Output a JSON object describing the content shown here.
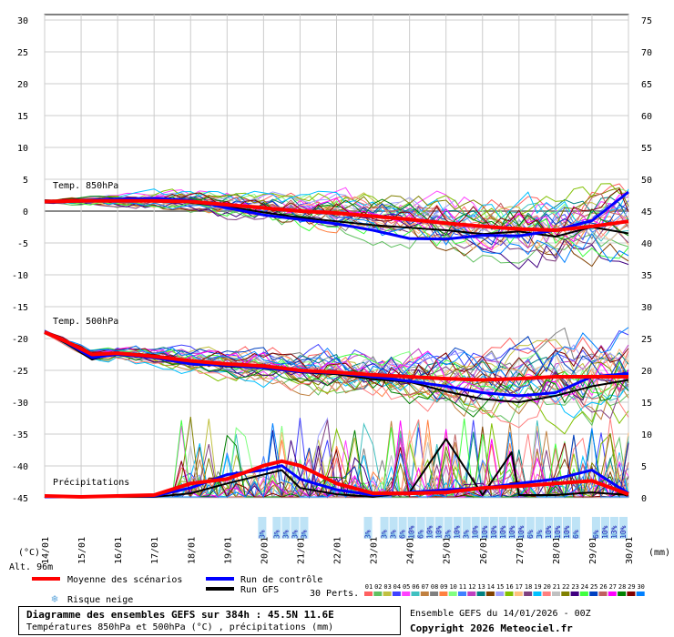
{
  "chart_data": {
    "type": "line",
    "title": "Diagramme des ensembles GEFS sur 384h : 45.5N 11.6E",
    "subtitle": "Températures 850hPa et 500hPa (°C) , précipitations (mm)",
    "left_axis_label": "(°C)",
    "right_axis_label": "(mm)",
    "altitude_label": "Alt. 96m",
    "left_axis_ticks": [
      30,
      25,
      20,
      15,
      10,
      5,
      0,
      -5,
      -10,
      -15,
      -20,
      -25,
      -30,
      -35,
      -40,
      -45
    ],
    "right_axis_ticks": [
      75,
      70,
      65,
      60,
      55,
      50,
      45,
      40,
      35,
      30,
      25,
      20,
      15,
      10,
      5,
      0
    ],
    "x_ticks": [
      "14/01",
      "15/01",
      "16/01",
      "17/01",
      "18/01",
      "19/01",
      "20/01",
      "21/01",
      "22/01",
      "23/01",
      "24/01",
      "25/01",
      "26/01",
      "27/01",
      "28/01",
      "29/01",
      "30/01"
    ],
    "section_labels": [
      "Temp. 850hPa",
      "Temp. 500hPa",
      "Précipitations"
    ],
    "legend": {
      "mean": "Moyenne des scénarios",
      "control": "Run de contrôle",
      "gfs": "Run GFS",
      "snow": "Risque neige",
      "perts_label": "30 Perts.",
      "pert_numbers": [
        "01",
        "02",
        "03",
        "04",
        "05",
        "06",
        "07",
        "08",
        "09",
        "10",
        "11",
        "12",
        "13",
        "14",
        "15",
        "16",
        "17",
        "18",
        "19",
        "20",
        "21",
        "22",
        "23",
        "24",
        "25",
        "26",
        "27",
        "28",
        "29",
        "30"
      ]
    },
    "colors": {
      "mean": "#ff0000",
      "control": "#0000ff",
      "gfs": "#000000",
      "snow": "#88ccee",
      "perts": [
        "#ff6060",
        "#60c060",
        "#c0c040",
        "#4040ff",
        "#ff40ff",
        "#40c0c0",
        "#c08040",
        "#808080",
        "#ff8040",
        "#80ff80",
        "#4080ff",
        "#c040c0",
        "#008080",
        "#804000",
        "#a0a0ff",
        "#80c000",
        "#ffc080",
        "#804080",
        "#00c0ff",
        "#ff8080",
        "#c0c0c0",
        "#808000",
        "#400080",
        "#40ff40",
        "#0040c0",
        "#c06060",
        "#ff00ff",
        "#008000",
        "#800000",
        "#0080ff"
      ]
    },
    "t850": {
      "mean": [
        [
          0,
          1.5
        ],
        [
          1,
          1.6
        ],
        [
          2,
          1.6
        ],
        [
          3,
          1.6
        ],
        [
          4,
          1.5
        ],
        [
          5,
          1.0
        ],
        [
          6,
          0.5
        ],
        [
          7,
          0.0
        ],
        [
          8,
          -0.3
        ],
        [
          9,
          -0.8
        ],
        [
          10,
          -1.3
        ],
        [
          11,
          -1.9
        ],
        [
          12,
          -2.4
        ],
        [
          13,
          -2.8
        ],
        [
          14,
          -3.0
        ],
        [
          15,
          -2.4
        ],
        [
          16,
          -1.6
        ]
      ],
      "control": [
        [
          0,
          1.5
        ],
        [
          1,
          1.7
        ],
        [
          2,
          1.9
        ],
        [
          3,
          2.0
        ],
        [
          4,
          1.7
        ],
        [
          5,
          0.5
        ],
        [
          6,
          -0.6
        ],
        [
          7,
          -1.3
        ],
        [
          8,
          -2.0
        ],
        [
          9,
          -3.0
        ],
        [
          10,
          -4.3
        ],
        [
          11,
          -4.4
        ],
        [
          12,
          -3.8
        ],
        [
          13,
          -3.9
        ],
        [
          14,
          -3.0
        ],
        [
          15,
          -1.5
        ],
        [
          16,
          3.0
        ]
      ],
      "gfs": [
        [
          0,
          1.7
        ],
        [
          1,
          1.5
        ],
        [
          2,
          1.7
        ],
        [
          3,
          2.0
        ],
        [
          4,
          1.3
        ],
        [
          5,
          0.7
        ],
        [
          6,
          -0.2
        ],
        [
          7,
          -1.0
        ],
        [
          8,
          -1.6
        ],
        [
          9,
          -2.2
        ],
        [
          10,
          -2.6
        ],
        [
          11,
          -3.0
        ],
        [
          12,
          -3.6
        ],
        [
          13,
          -3.2
        ],
        [
          14,
          -4.0
        ],
        [
          15,
          -2.5
        ],
        [
          16,
          -3.5
        ]
      ]
    },
    "t500": {
      "mean": [
        [
          0,
          -19
        ],
        [
          0.6,
          -20.5
        ],
        [
          1.3,
          -22.5
        ],
        [
          2,
          -22.3
        ],
        [
          3,
          -22.8
        ],
        [
          4,
          -23.5
        ],
        [
          5,
          -24.0
        ],
        [
          6,
          -24.3
        ],
        [
          7,
          -25.0
        ],
        [
          8,
          -25.3
        ],
        [
          9,
          -25.7
        ],
        [
          10,
          -26.0
        ],
        [
          11,
          -26.3
        ],
        [
          12,
          -26.5
        ],
        [
          13,
          -26.3
        ],
        [
          14,
          -26.0
        ],
        [
          15,
          -26.0
        ],
        [
          16,
          -26.0
        ]
      ],
      "control": [
        [
          0,
          -19
        ],
        [
          0.6,
          -20.6
        ],
        [
          1.3,
          -23.0
        ],
        [
          2,
          -22.5
        ],
        [
          3,
          -23.0
        ],
        [
          4,
          -24.0
        ],
        [
          5,
          -24.2
        ],
        [
          6,
          -24.6
        ],
        [
          7,
          -25.2
        ],
        [
          8,
          -25.4
        ],
        [
          9,
          -26.0
        ],
        [
          10,
          -26.7
        ],
        [
          11,
          -27.5
        ],
        [
          12,
          -28.5
        ],
        [
          13,
          -29.0
        ],
        [
          14,
          -28.5
        ],
        [
          15,
          -26.0
        ],
        [
          16,
          -25.5
        ]
      ],
      "gfs": [
        [
          0,
          -19
        ],
        [
          0.6,
          -20.8
        ],
        [
          1.3,
          -23.3
        ],
        [
          2,
          -22.2
        ],
        [
          3,
          -22.6
        ],
        [
          4,
          -23.8
        ],
        [
          5,
          -24.4
        ],
        [
          6,
          -24.6
        ],
        [
          7,
          -25.3
        ],
        [
          8,
          -25.6
        ],
        [
          9,
          -26.4
        ],
        [
          10,
          -26.8
        ],
        [
          11,
          -28.3
        ],
        [
          12,
          -29.5
        ],
        [
          13,
          -30.0
        ],
        [
          14,
          -29.0
        ],
        [
          15,
          -27.5
        ],
        [
          16,
          -26.5
        ]
      ]
    },
    "precip": {
      "mean": [
        [
          0,
          0.1
        ],
        [
          1,
          0.0
        ],
        [
          2,
          0.1
        ],
        [
          3,
          0.2
        ],
        [
          4,
          1.5
        ],
        [
          5,
          2.0
        ],
        [
          6,
          3.5
        ],
        [
          6.5,
          4.0
        ],
        [
          7,
          3.5
        ],
        [
          8,
          1.5
        ],
        [
          9,
          0.4
        ],
        [
          10,
          0.4
        ],
        [
          11,
          0.5
        ],
        [
          12,
          1.0
        ],
        [
          13,
          1.2
        ],
        [
          14,
          1.5
        ],
        [
          15,
          1.8
        ],
        [
          16,
          0.3
        ]
      ],
      "control": [
        [
          0,
          0.0
        ],
        [
          1,
          0.0
        ],
        [
          2,
          0.1
        ],
        [
          3,
          0.1
        ],
        [
          4,
          1.0
        ],
        [
          5,
          2.5
        ],
        [
          6,
          3.0
        ],
        [
          6.5,
          3.5
        ],
        [
          7,
          2.0
        ],
        [
          8,
          0.8
        ],
        [
          9,
          0.2
        ],
        [
          10,
          0.5
        ],
        [
          11,
          0.8
        ],
        [
          12,
          1.0
        ],
        [
          13,
          1.5
        ],
        [
          14,
          2.0
        ],
        [
          15,
          3.0
        ],
        [
          16,
          0.4
        ]
      ],
      "gfs": [
        [
          0,
          0.0
        ],
        [
          1,
          0.0
        ],
        [
          2,
          0.0
        ],
        [
          3,
          0.0
        ],
        [
          4,
          0.4
        ],
        [
          5,
          1.5
        ],
        [
          6,
          2.5
        ],
        [
          6.5,
          3.0
        ],
        [
          7,
          1.0
        ],
        [
          8,
          0.3
        ],
        [
          9,
          0.0
        ],
        [
          10,
          0.5
        ],
        [
          11,
          6.5
        ],
        [
          12,
          0.2
        ],
        [
          12.8,
          5.0
        ],
        [
          13,
          0.2
        ],
        [
          14,
          0.2
        ],
        [
          15,
          0.5
        ],
        [
          16,
          0.2
        ]
      ]
    },
    "snow_markers": [
      {
        "x": 5.95,
        "label": "3%"
      },
      {
        "x": 6.35,
        "label": "3%"
      },
      {
        "x": 6.6,
        "label": "3%"
      },
      {
        "x": 6.85,
        "label": "3%"
      },
      {
        "x": 7.1,
        "label": "3%"
      },
      {
        "x": 8.85,
        "label": "3%"
      },
      {
        "x": 9.3,
        "label": "3%"
      },
      {
        "x": 9.55,
        "label": "3%"
      },
      {
        "x": 9.8,
        "label": "6%"
      },
      {
        "x": 10.05,
        "label": "10%"
      },
      {
        "x": 10.3,
        "label": "6%"
      },
      {
        "x": 10.55,
        "label": "10%"
      },
      {
        "x": 10.8,
        "label": "10%"
      },
      {
        "x": 11.05,
        "label": "3%"
      },
      {
        "x": 11.3,
        "label": "10%"
      },
      {
        "x": 11.55,
        "label": "3%"
      },
      {
        "x": 11.8,
        "label": "10%"
      },
      {
        "x": 12.05,
        "label": "10%"
      },
      {
        "x": 12.3,
        "label": "10%"
      },
      {
        "x": 12.55,
        "label": "10%"
      },
      {
        "x": 12.8,
        "label": "10%"
      },
      {
        "x": 13.05,
        "label": "10%"
      },
      {
        "x": 13.3,
        "label": "6%"
      },
      {
        "x": 13.55,
        "label": "3%"
      },
      {
        "x": 13.8,
        "label": "10%"
      },
      {
        "x": 14.05,
        "label": "10%"
      },
      {
        "x": 14.3,
        "label": "10%"
      },
      {
        "x": 14.55,
        "label": "6%"
      },
      {
        "x": 15.1,
        "label": "6%"
      },
      {
        "x": 15.35,
        "label": "10%"
      },
      {
        "x": 15.6,
        "label": "13%"
      },
      {
        "x": 15.85,
        "label": "10%"
      }
    ]
  },
  "footer": {
    "title": "Diagramme des ensembles GEFS sur 384h : 45.5N 11.6E",
    "subtitle": "Températures 850hPa et 500hPa (°C) , précipitations (mm)",
    "run_info": "Ensemble GEFS du 14/01/2026 - 00Z",
    "copyright": "Copyright 2026 Meteociel.fr"
  }
}
